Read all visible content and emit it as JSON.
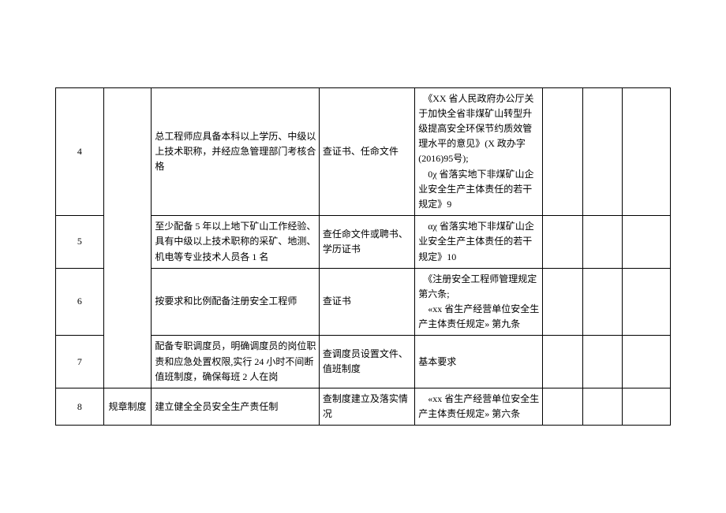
{
  "rows": [
    {
      "num": "4",
      "category": "",
      "description": "总工程师应具备本科以上学历、中级以上技术职称，并经应急管理部门考核合格",
      "check": "查证书、任命文件",
      "basis": "　《XX 省人民政府办公厅关于加快全省非煤矿山转型升级提高安全环保节约质效管理水平的意见》(X 政办字(2016)95号);\n　0χ 省落实地下非煤矿山企业安全生产主体责任的若干规定》9"
    },
    {
      "num": "5",
      "category": "",
      "description": "至少配备 5 年以上地下矿山工作经验、具有中级以上技术职称的采矿、地测、机电等专业技术人员各 1 名",
      "check": "查任命文件或聘书、学历证书",
      "basis": "　αχ 省落实地下非煤矿山企业安全生产主体责任的若干规定》10"
    },
    {
      "num": "6",
      "category": "",
      "description": "按要求和比例配备注册安全工程师",
      "check": "查证书",
      "basis": "　《注册安全工程师管理规定第六条;\n　«xx 省生产经营单位安全生产主体责任规定» 第九条"
    },
    {
      "num": "7",
      "category": "",
      "description": "配备专职调度员，明确调度员的岗位职责和应急处置权限,实行 24 小时不间断值班制度，确保每班 2 人在岗",
      "check": "查调度员设置文件、值班制度",
      "basis": "基本要求"
    },
    {
      "num": "8",
      "category": "规章制度",
      "description": "建立健全全员安全生产责任制",
      "check": "查制度建立及落实情况",
      "basis": "　«xx 省生产经营单位安全生产主体责任规定» 第六条"
    }
  ],
  "styling": {
    "background_color": "#ffffff",
    "border_color": "#000000",
    "text_color": "#000000",
    "font_size": 12,
    "font_family": "SimSun"
  }
}
